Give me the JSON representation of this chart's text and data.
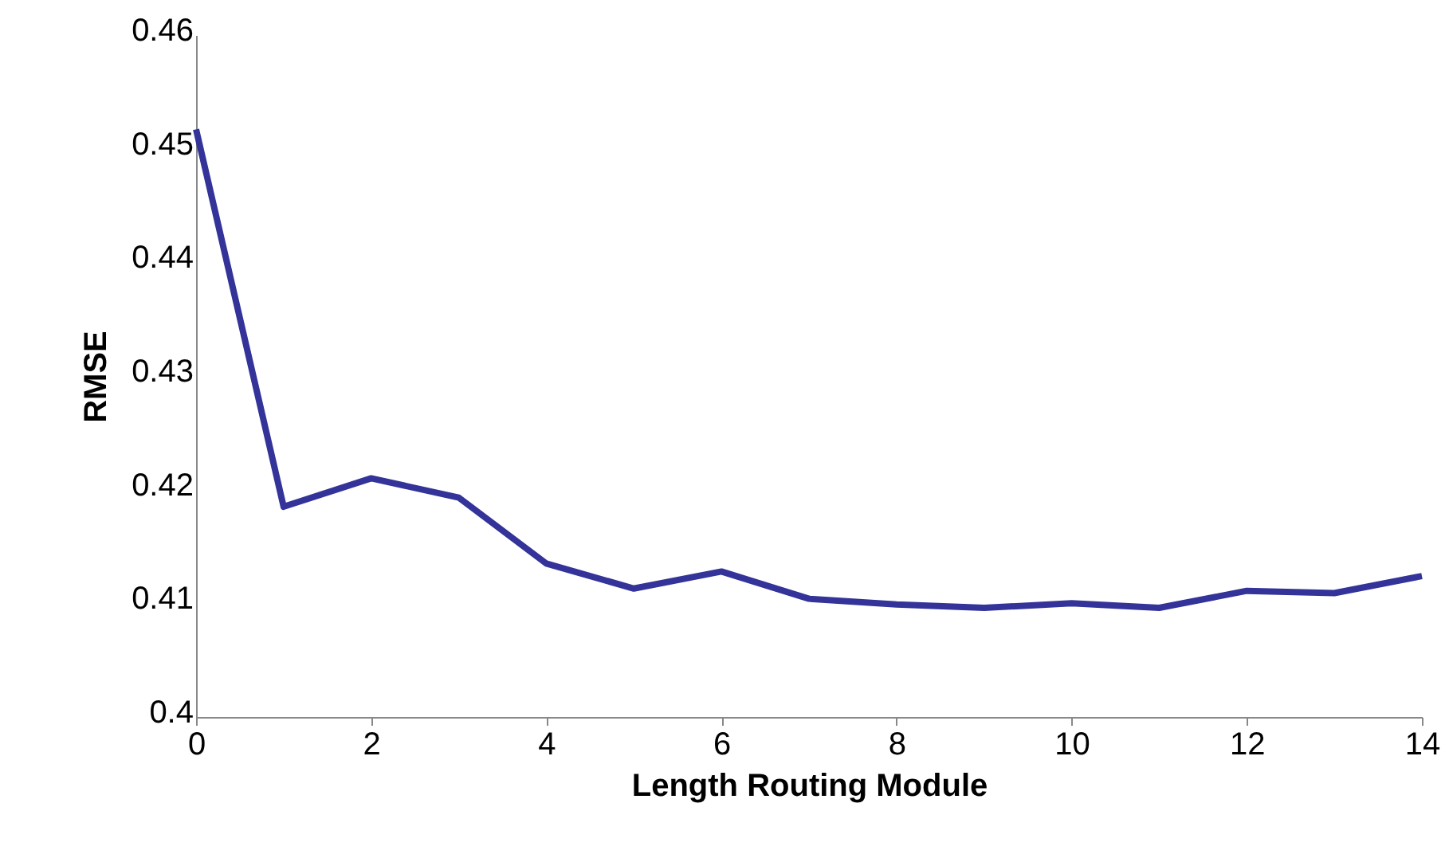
{
  "chart_data": {
    "type": "line",
    "xlabel": "Length Routing Module",
    "ylabel": "RMSE",
    "x": [
      0,
      1,
      2,
      3,
      4,
      5,
      6,
      7,
      8,
      9,
      10,
      11,
      12,
      13,
      14
    ],
    "series": [
      {
        "color": "#333399",
        "values": [
          0.4517,
          0.4185,
          0.421,
          0.4193,
          0.4135,
          0.4113,
          0.4128,
          0.4104,
          0.4099,
          0.4096,
          0.41,
          0.4096,
          0.4111,
          0.4109,
          0.4124
        ]
      }
    ],
    "xlim": [
      0,
      14
    ],
    "xticks": [
      0,
      2,
      4,
      6,
      8,
      10,
      12,
      14
    ],
    "ylim": [
      0.4,
      0.46
    ],
    "yticks": [
      {
        "value": 0.4,
        "label": "0.4"
      },
      0.41,
      0.42,
      0.43,
      0.44,
      0.45,
      0.46
    ],
    "grid": false,
    "marker": "none",
    "line_style": "solid"
  }
}
